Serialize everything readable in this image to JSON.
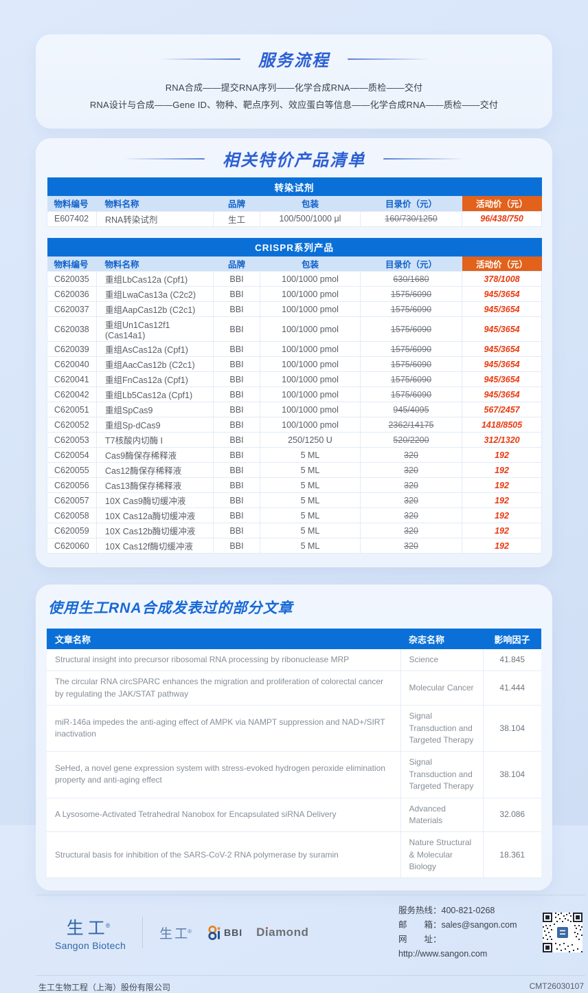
{
  "colors": {
    "primary_blue": "#0a70d8",
    "title_blue": "#2b5fd3",
    "column_header_bg": "#cfe2f8",
    "column_header_text": "#1161ca",
    "promo_header_orange": "#e2611b",
    "promo_price_red": "#ea3a0f"
  },
  "service_flow": {
    "title": "服务流程",
    "lines": [
      "RNA合成——提交RNA序列——化学合成RNA——质检——交付",
      "RNA设计与合成——Gene ID、物种、靶点序列、效应蛋白等信息——化学合成RNA——质检——交付"
    ]
  },
  "special_products": {
    "title": "相关特价产品清单",
    "columns": [
      "物料编号",
      "物料名称",
      "品牌",
      "包装",
      "目录价（元）",
      "活动价（元）"
    ],
    "tables": [
      {
        "name": "转染试剂",
        "rows": [
          [
            "E607402",
            "RNA转染试剂",
            "生工",
            "100/500/1000 μl",
            "160/730/1250",
            "96/438/750"
          ]
        ]
      },
      {
        "name": "CRISPR系列产品",
        "rows": [
          [
            "C620035",
            "重组LbCas12a (Cpf1)",
            "BBI",
            "100/1000 pmol",
            "630/1680",
            "378/1008"
          ],
          [
            "C620036",
            "重组LwaCas13a (C2c2)",
            "BBI",
            "100/1000 pmol",
            "1575/6090",
            "945/3654"
          ],
          [
            "C620037",
            "重组AapCas12b (C2c1)",
            "BBI",
            "100/1000 pmol",
            "1575/6090",
            "945/3654"
          ],
          [
            "C620038",
            "重组Un1Cas12f1 (Cas14a1)",
            "BBI",
            "100/1000 pmol",
            "1575/6090",
            "945/3654"
          ],
          [
            "C620039",
            "重组AsCas12a (Cpf1)",
            "BBI",
            "100/1000 pmol",
            "1575/6090",
            "945/3654"
          ],
          [
            "C620040",
            "重组AacCas12b (C2c1)",
            "BBI",
            "100/1000 pmol",
            "1575/6090",
            "945/3654"
          ],
          [
            "C620041",
            "重组FnCas12a (Cpf1)",
            "BBI",
            "100/1000 pmol",
            "1575/6090",
            "945/3654"
          ],
          [
            "C620042",
            "重组Lb5Cas12a (Cpf1)",
            "BBI",
            "100/1000 pmol",
            "1575/6090",
            "945/3654"
          ],
          [
            "C620051",
            "重组SpCas9",
            "BBI",
            "100/1000 pmol",
            "945/4095",
            "567/2457"
          ],
          [
            "C620052",
            "重组Sp-dCas9",
            "BBI",
            "100/1000 pmol",
            "2362/14175",
            "1418/8505"
          ],
          [
            "C620053",
            "T7核酸内切酶 I",
            "BBI",
            "250/1250 U",
            "520/2200",
            "312/1320"
          ],
          [
            "C620054",
            "Cas9酶保存稀释液",
            "BBI",
            "5 ML",
            "320",
            "192"
          ],
          [
            "C620055",
            "Cas12酶保存稀释液",
            "BBI",
            "5 ML",
            "320",
            "192"
          ],
          [
            "C620056",
            "Cas13酶保存稀释液",
            "BBI",
            "5 ML",
            "320",
            "192"
          ],
          [
            "C620057",
            "10X Cas9酶切缓冲液",
            "BBI",
            "5 ML",
            "320",
            "192"
          ],
          [
            "C620058",
            "10X Cas12a酶切缓冲液",
            "BBI",
            "5 ML",
            "320",
            "192"
          ],
          [
            "C620059",
            "10X Cas12b酶切缓冲液",
            "BBI",
            "5 ML",
            "320",
            "192"
          ],
          [
            "C620060",
            "10X Cas12f酶切缓冲液",
            "BBI",
            "5 ML",
            "320",
            "192"
          ]
        ]
      }
    ]
  },
  "articles": {
    "title": "使用生工RNA合成发表过的部分文章",
    "columns": [
      "文章名称",
      "杂志名称",
      "影响因子"
    ],
    "rows": [
      [
        "Structural insight into precursor ribosomal RNA processing by ribonuclease MRP",
        "Science",
        "41.845"
      ],
      [
        "The circular RNA circSPARC enhances the migration and proliferation of colorectal cancer by regulating the JAK/STAT pathway",
        "Molecular Cancer",
        "41.444"
      ],
      [
        "miR-146a impedes the anti-aging effect of AMPK via NAMPT suppression and NAD+/SIRT inactivation",
        "Signal Transduction and Targeted Therapy",
        "38.104"
      ],
      [
        "SeHed, a novel gene expression system with stress-evoked hydrogen peroxide elimination property and anti-aging effect",
        "Signal Transduction and Targeted Therapy",
        "38.104"
      ],
      [
        "A Lysosome-Activated Tetrahedral Nanobox for Encapsulated siRNA Delivery",
        "Advanced Materials",
        "32.086"
      ],
      [
        "Structural basis for inhibition of the SARS-CoV-2 RNA polymerase by suramin",
        "Nature Structural & Molecular Biology",
        "18.361"
      ]
    ]
  },
  "footer": {
    "logos": {
      "sangon_cn": "生工",
      "reg": "®",
      "sangon_en": "Sangon Biotech",
      "sangon_small": "生工",
      "bbi": "BBI",
      "diamond": "Diamond"
    },
    "contacts": [
      {
        "label": "服务热线：",
        "value": "400-821-0268"
      },
      {
        "label": "邮　　箱：",
        "value": "sales@sangon.com"
      },
      {
        "label": "网　　址：",
        "value": "http://www.sangon.com"
      }
    ],
    "company": "生工生物工程（上海）股份有限公司",
    "doc_code": "CMT26030107"
  }
}
